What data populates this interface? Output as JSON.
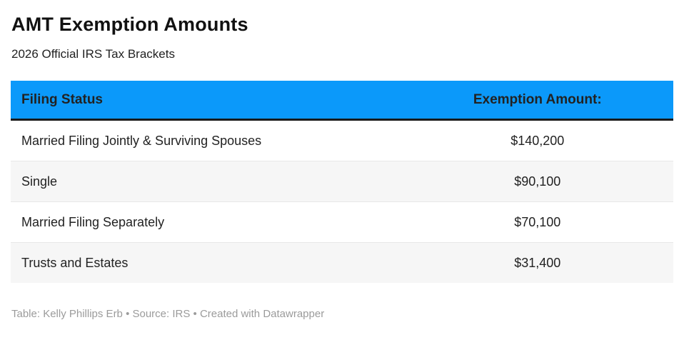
{
  "header": {
    "title": "AMT Exemption Amounts",
    "subtitle": "2026 Official IRS Tax Brackets"
  },
  "table": {
    "columns": [
      {
        "label": "Filing Status"
      },
      {
        "label": "Exemption Amount:"
      }
    ],
    "rows": [
      {
        "filing_status": "Married Filing Jointly & Surviving Spouses",
        "exemption_amount": "$140,200"
      },
      {
        "filing_status": "Single",
        "exemption_amount": "$90,100"
      },
      {
        "filing_status": "Married Filing Separately",
        "exemption_amount": "$70,100"
      },
      {
        "filing_status": "Trusts and Estates",
        "exemption_amount": "$31,400"
      }
    ]
  },
  "footer": {
    "credit": "Table: Kelly Phillips Erb • Source: IRS • Created with Datawrapper"
  },
  "colors": {
    "header_background": "#0b99fa",
    "header_border": "#1a1a1a",
    "row_alt_background": "#f6f6f6",
    "row_divider": "#e8e8e8",
    "title_text": "#111111",
    "cell_text": "#222222",
    "footer_text": "#9b9b9b"
  },
  "chart_data": {
    "type": "table",
    "title": "AMT Exemption Amounts",
    "subtitle": "2026 Official IRS Tax Brackets",
    "columns": [
      "Filing Status",
      "Exemption Amount:"
    ],
    "rows": [
      [
        "Married Filing Jointly & Surviving Spouses",
        "$140,200"
      ],
      [
        "Single",
        "$90,100"
      ],
      [
        "Married Filing Separately",
        "$70,100"
      ],
      [
        "Trusts and Estates",
        "$31,400"
      ]
    ],
    "values": [
      140200,
      90100,
      70100,
      31400
    ],
    "source": "IRS",
    "credit": "Table: Kelly Phillips Erb",
    "tool": "Created with Datawrapper",
    "layout_hints": {
      "header_style": "blue-band",
      "zebra_striping": true,
      "amount_column_alignment": "center"
    }
  }
}
